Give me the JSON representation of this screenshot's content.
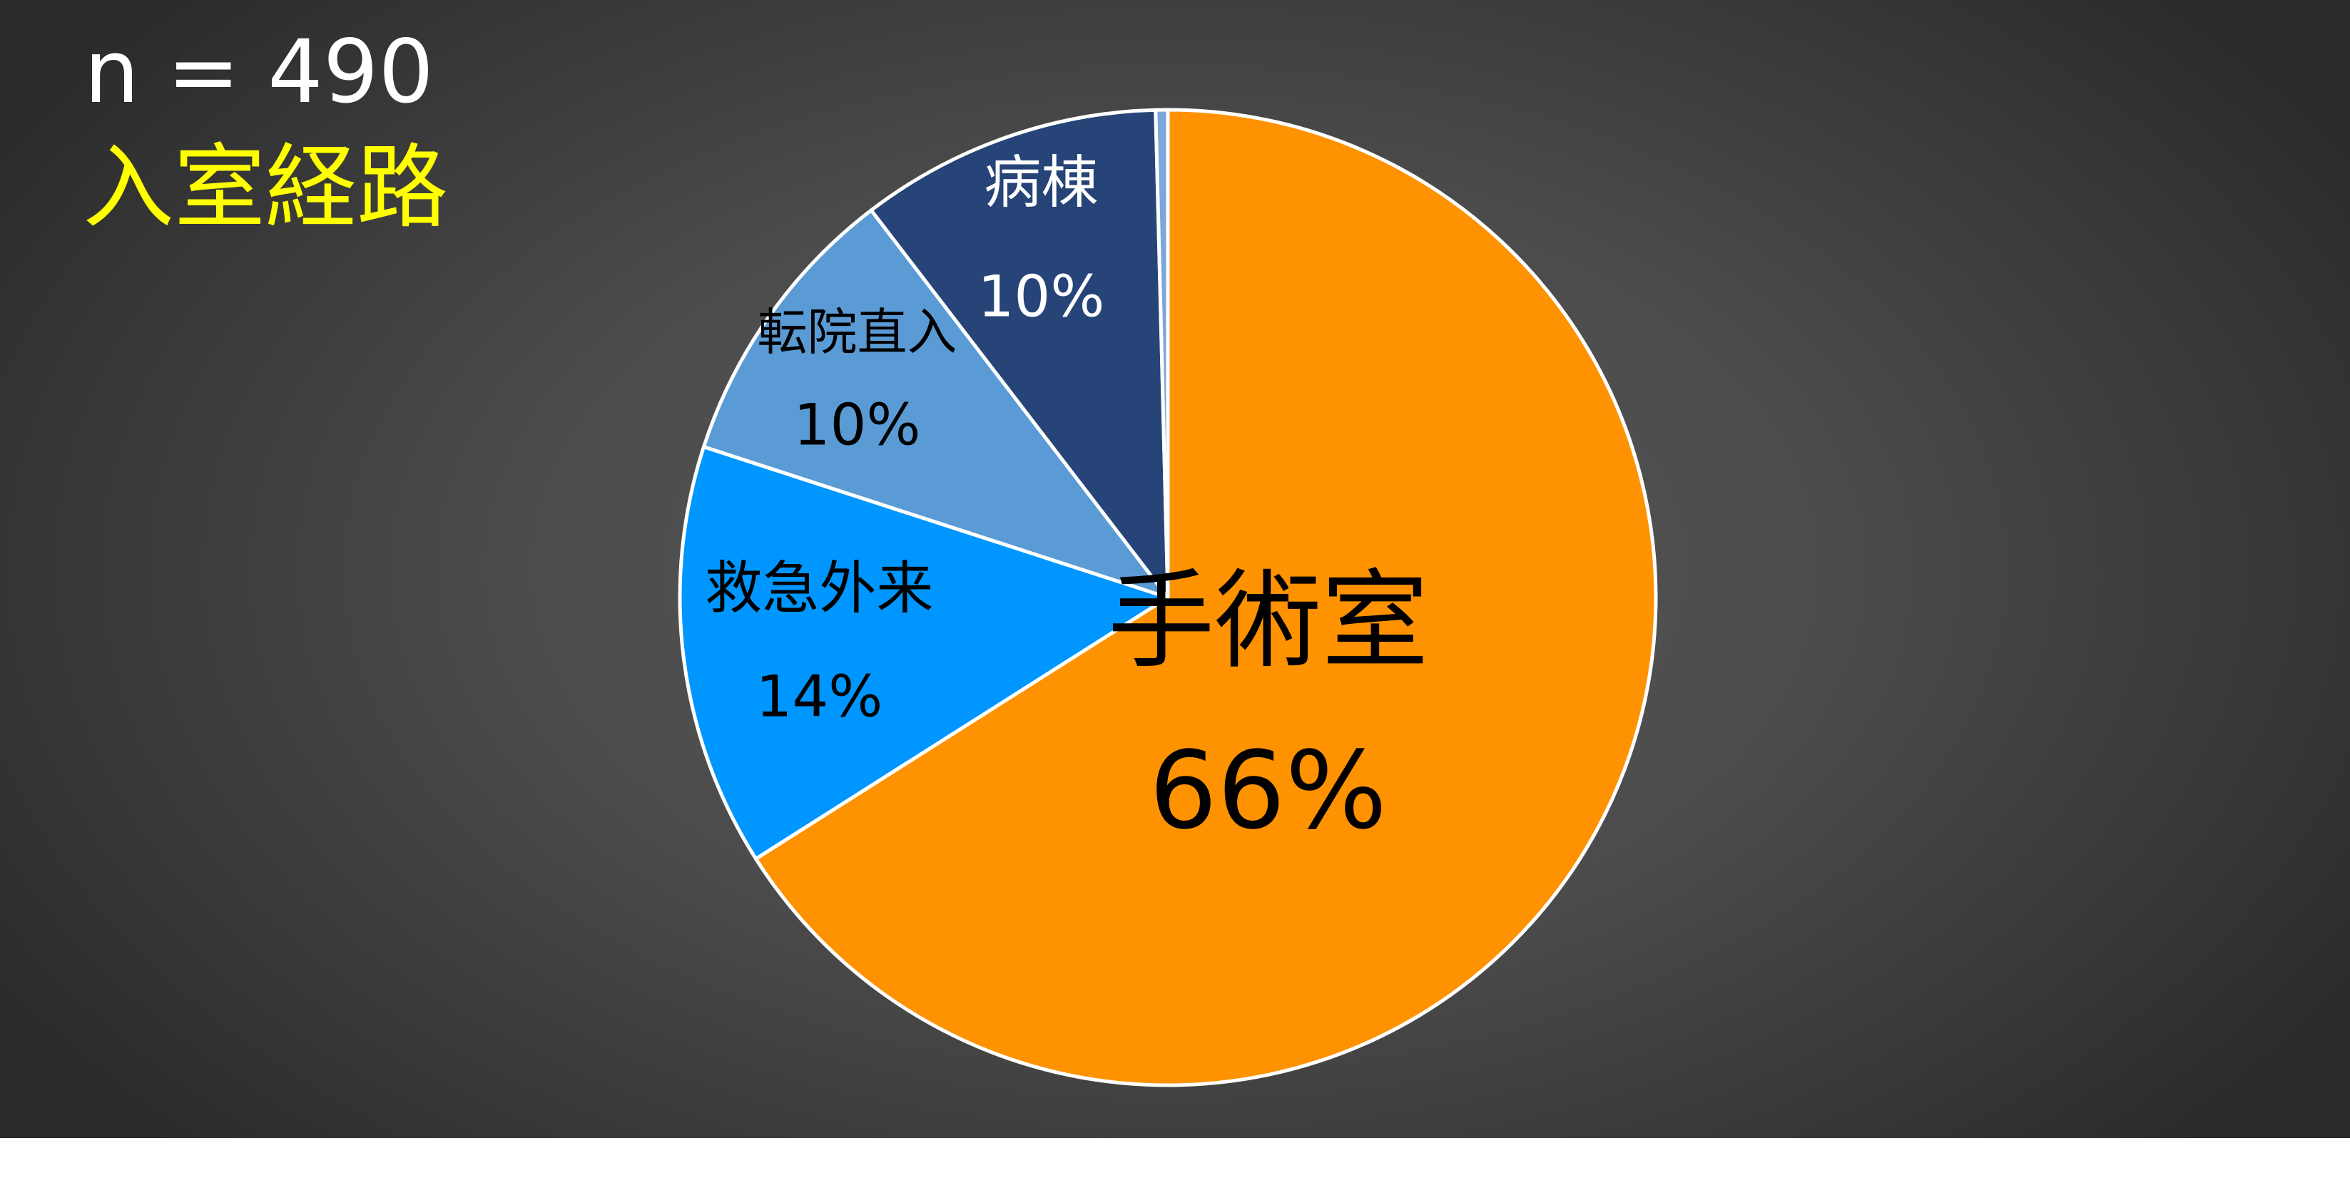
{
  "header": {
    "n_text": "n = 490",
    "title": "入室経路"
  },
  "chart_data": {
    "type": "pie",
    "title": "入室経路",
    "slices": [
      {
        "label": "手術室",
        "value_text": "66%",
        "value": 66.0,
        "color": "#ff9200",
        "label_color": "#000000"
      },
      {
        "label": "救急外来",
        "value_text": "14%",
        "value": 14.0,
        "color": "#0096ff",
        "label_color": "#000000"
      },
      {
        "label": "転院直入",
        "value_text": "10%",
        "value": 9.6,
        "color": "#5b9bd5",
        "label_color": "#000000"
      },
      {
        "label": "病棟",
        "value_text": "10%",
        "value": 10.0,
        "color": "#264478",
        "label_color": "#ffffff"
      },
      {
        "label": "",
        "value_text": "",
        "value": 0.4,
        "color": "#7ba7db",
        "label_color": "#ffffff"
      }
    ],
    "border_color": "#ffffff",
    "start_angle_deg": 0,
    "direction": "clockwise"
  }
}
